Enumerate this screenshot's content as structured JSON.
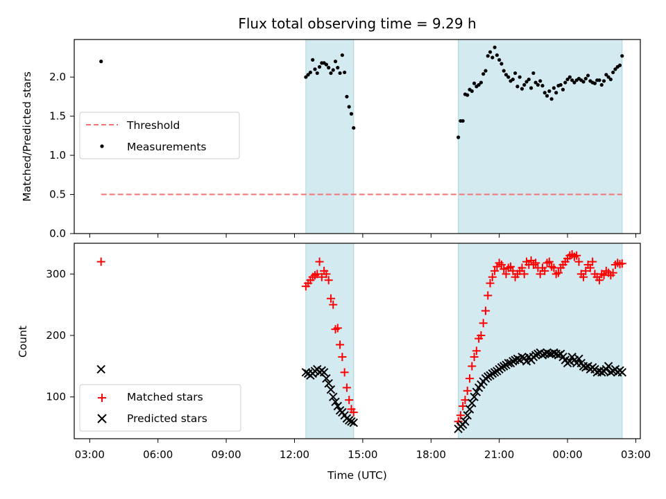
{
  "chart_data": {
    "title": "Flux total observing time = 9.29 h",
    "xlabel": "Time (UTC)",
    "x_unit": "hours (UTC clock time, continuing past midnight)",
    "xlim": [
      2.32,
      27.2
    ],
    "xticks": [
      {
        "value": 3,
        "label": "03:00"
      },
      {
        "value": 6,
        "label": "06:00"
      },
      {
        "value": 9,
        "label": "09:00"
      },
      {
        "value": 12,
        "label": "12:00"
      },
      {
        "value": 15,
        "label": "15:00"
      },
      {
        "value": 18,
        "label": "18:00"
      },
      {
        "value": 21,
        "label": "21:00"
      },
      {
        "value": 24,
        "label": "00:00"
      },
      {
        "value": 27,
        "label": "03:00"
      }
    ],
    "observing_windows": [
      [
        12.5,
        14.6
      ],
      [
        19.2,
        26.4
      ]
    ],
    "window_color": "#d3eaf0",
    "top": {
      "type": "scatter",
      "ylabel": "Matched/Predicted stars",
      "ylim": [
        0,
        2.48
      ],
      "yticks": [
        "0.0",
        "0.5",
        "1.0",
        "1.5",
        "2.0"
      ],
      "threshold": {
        "name": "Threshold",
        "value": 0.5,
        "x": [
          3.5,
          26.4
        ],
        "color": "#f47272"
      },
      "measurements": {
        "name": "Measurements",
        "color": "#000000",
        "x": [
          3.5,
          12.5,
          12.6,
          12.7,
          12.8,
          12.9,
          13.0,
          13.1,
          13.2,
          13.3,
          13.4,
          13.5,
          13.6,
          13.7,
          13.8,
          13.9,
          14.0,
          14.1,
          14.2,
          14.3,
          14.4,
          14.5,
          14.6,
          19.2,
          19.3,
          19.4,
          19.5,
          19.6,
          19.7,
          19.8,
          19.9,
          20.0,
          20.1,
          20.2,
          20.3,
          20.4,
          20.5,
          20.6,
          20.7,
          20.8,
          20.9,
          21.0,
          21.1,
          21.2,
          21.3,
          21.4,
          21.5,
          21.6,
          21.7,
          21.8,
          21.9,
          22.0,
          22.1,
          22.2,
          22.3,
          22.4,
          22.5,
          22.6,
          22.7,
          22.8,
          22.9,
          23.0,
          23.1,
          23.2,
          23.3,
          23.4,
          23.5,
          23.6,
          23.7,
          23.8,
          23.9,
          24.0,
          24.1,
          24.2,
          24.3,
          24.4,
          24.5,
          24.6,
          24.7,
          24.8,
          24.9,
          25.0,
          25.1,
          25.2,
          25.3,
          25.4,
          25.5,
          25.6,
          25.7,
          25.8,
          25.9,
          26.0,
          26.1,
          26.2,
          26.3,
          26.4
        ],
        "y": [
          2.2,
          2.0,
          2.03,
          2.06,
          2.22,
          2.1,
          2.05,
          2.13,
          2.18,
          2.18,
          2.16,
          2.12,
          2.05,
          2.09,
          2.2,
          2.12,
          2.05,
          2.28,
          2.06,
          1.75,
          1.62,
          1.53,
          1.35,
          1.23,
          1.44,
          1.44,
          1.78,
          1.77,
          1.84,
          1.82,
          1.92,
          1.88,
          1.9,
          1.93,
          2.04,
          2.08,
          2.27,
          2.32,
          2.25,
          2.38,
          2.28,
          2.22,
          2.17,
          2.08,
          2.03,
          2.0,
          1.95,
          1.97,
          2.05,
          1.88,
          2.0,
          1.85,
          1.9,
          1.94,
          1.97,
          1.86,
          2.05,
          1.93,
          1.9,
          1.95,
          1.89,
          1.8,
          1.76,
          1.82,
          1.72,
          1.86,
          1.8,
          1.89,
          1.9,
          1.84,
          1.93,
          1.97,
          2.0,
          1.96,
          1.93,
          1.96,
          1.98,
          1.96,
          1.94,
          1.98,
          2.02,
          1.95,
          1.93,
          1.92,
          1.96,
          1.96,
          1.9,
          1.95,
          2.03,
          2.0,
          1.97,
          2.06,
          2.1,
          2.13,
          2.15,
          2.27
        ]
      }
    },
    "bottom": {
      "type": "scatter",
      "ylabel": "Count",
      "ylim": [
        32,
        350
      ],
      "yticks": [
        "100",
        "200",
        "300"
      ],
      "series": [
        {
          "name": "Matched stars",
          "marker": "+",
          "color": "#ff0000",
          "x": [
            3.5,
            12.5,
            12.6,
            12.7,
            12.8,
            12.9,
            13.0,
            13.1,
            13.2,
            13.3,
            13.4,
            13.5,
            13.6,
            13.7,
            13.8,
            13.9,
            14.0,
            14.1,
            14.2,
            14.3,
            14.4,
            14.5,
            14.6,
            19.2,
            19.3,
            19.4,
            19.5,
            19.6,
            19.7,
            19.8,
            19.9,
            20.0,
            20.1,
            20.2,
            20.3,
            20.4,
            20.5,
            20.6,
            20.7,
            20.8,
            20.9,
            21.0,
            21.1,
            21.2,
            21.3,
            21.4,
            21.5,
            21.6,
            21.7,
            21.8,
            21.9,
            22.0,
            22.1,
            22.2,
            22.3,
            22.4,
            22.5,
            22.6,
            22.7,
            22.8,
            22.9,
            23.0,
            23.1,
            23.2,
            23.3,
            23.4,
            23.5,
            23.6,
            23.7,
            23.8,
            23.9,
            24.0,
            24.1,
            24.2,
            24.3,
            24.4,
            24.5,
            24.6,
            24.7,
            24.8,
            24.9,
            25.0,
            25.1,
            25.2,
            25.3,
            25.4,
            25.5,
            25.6,
            25.7,
            25.8,
            25.9,
            26.0,
            26.1,
            26.2,
            26.3,
            26.4
          ],
          "y": [
            320,
            280,
            285,
            290,
            295,
            298,
            300,
            320,
            295,
            305,
            300,
            290,
            260,
            250,
            210,
            212,
            185,
            165,
            140,
            115,
            95,
            80,
            75,
            60,
            70,
            85,
            95,
            110,
            130,
            150,
            165,
            175,
            195,
            200,
            220,
            240,
            265,
            285,
            295,
            305,
            312,
            318,
            315,
            308,
            300,
            310,
            312,
            305,
            295,
            300,
            305,
            310,
            300,
            320,
            315,
            322,
            315,
            318,
            310,
            300,
            310,
            305,
            318,
            320,
            312,
            310,
            300,
            302,
            310,
            315,
            320,
            325,
            330,
            332,
            328,
            330,
            320,
            300,
            295,
            305,
            315,
            310,
            320,
            300,
            295,
            290,
            300,
            298,
            305,
            302,
            298,
            302,
            315,
            318,
            316,
            317
          ]
        },
        {
          "name": "Predicted stars",
          "marker": "x",
          "color": "#000000",
          "x": [
            3.5,
            12.5,
            12.6,
            12.7,
            12.8,
            12.9,
            13.0,
            13.1,
            13.2,
            13.3,
            13.4,
            13.5,
            13.6,
            13.7,
            13.8,
            13.9,
            14.0,
            14.1,
            14.2,
            14.3,
            14.4,
            14.5,
            14.6,
            19.2,
            19.3,
            19.4,
            19.5,
            19.6,
            19.7,
            19.8,
            19.9,
            20.0,
            20.1,
            20.2,
            20.3,
            20.4,
            20.5,
            20.6,
            20.7,
            20.8,
            20.9,
            21.0,
            21.1,
            21.2,
            21.3,
            21.4,
            21.5,
            21.6,
            21.7,
            21.8,
            21.9,
            22.0,
            22.1,
            22.2,
            22.3,
            22.4,
            22.5,
            22.6,
            22.7,
            22.8,
            22.9,
            23.0,
            23.1,
            23.2,
            23.3,
            23.4,
            23.5,
            23.6,
            23.7,
            23.8,
            23.9,
            24.0,
            24.1,
            24.2,
            24.3,
            24.4,
            24.5,
            24.6,
            24.7,
            24.8,
            24.9,
            25.0,
            25.1,
            25.2,
            25.3,
            25.4,
            25.5,
            25.6,
            25.7,
            25.8,
            25.9,
            26.0,
            26.1,
            26.2,
            26.3,
            26.4
          ],
          "y": [
            145,
            140,
            138,
            135,
            138,
            142,
            145,
            140,
            143,
            140,
            130,
            122,
            112,
            100,
            92,
            85,
            78,
            75,
            70,
            65,
            62,
            60,
            58,
            48,
            52,
            55,
            60,
            70,
            80,
            90,
            100,
            108,
            115,
            120,
            125,
            130,
            133,
            135,
            138,
            140,
            142,
            145,
            148,
            150,
            152,
            155,
            155,
            158,
            160,
            162,
            160,
            165,
            163,
            158,
            165,
            160,
            165,
            168,
            170,
            172,
            168,
            170,
            172,
            170,
            170,
            172,
            170,
            168,
            170,
            165,
            160,
            155,
            158,
            165,
            160,
            155,
            162,
            155,
            150,
            148,
            150,
            145,
            148,
            145,
            140,
            142,
            140,
            142,
            145,
            150,
            140,
            142,
            145,
            140,
            143,
            140
          ]
        }
      ]
    }
  }
}
